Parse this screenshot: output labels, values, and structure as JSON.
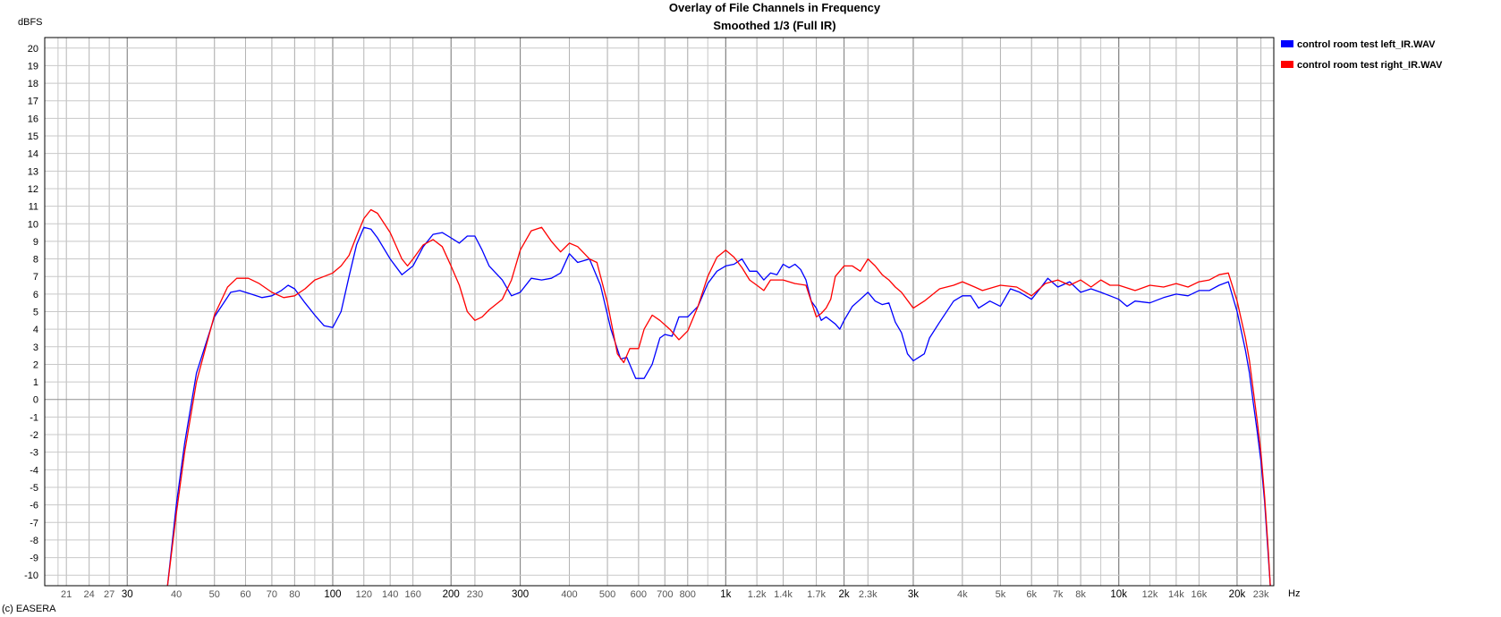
{
  "chart_data": {
    "type": "line",
    "title": "Overlay of File Channels in Frequency",
    "subtitle": "Smoothed 1/3 (Full IR)",
    "ylabel": "dBFS",
    "xlabel": "Hz",
    "x_scale": "log",
    "xlim": [
      18.5,
      24800
    ],
    "ylim": [
      -10.6,
      20.6
    ],
    "grid": true,
    "legend_placement": "top-right, outside plot",
    "y_ticks": [
      20,
      19,
      18,
      17,
      16,
      15,
      14,
      13,
      12,
      11,
      10,
      9,
      8,
      7,
      6,
      5,
      4,
      3,
      2,
      1,
      0,
      -1,
      -2,
      -3,
      -4,
      -5,
      -6,
      -7,
      -8,
      -9,
      -10
    ],
    "x_ticks": [
      {
        "value": 21,
        "label": "21",
        "major": false
      },
      {
        "value": 24,
        "label": "24",
        "major": false
      },
      {
        "value": 27,
        "label": "27",
        "major": false
      },
      {
        "value": 30,
        "label": "30",
        "major": true
      },
      {
        "value": 40,
        "label": "40",
        "major": false
      },
      {
        "value": 50,
        "label": "50",
        "major": false
      },
      {
        "value": 60,
        "label": "60",
        "major": false
      },
      {
        "value": 70,
        "label": "70",
        "major": false
      },
      {
        "value": 80,
        "label": "80",
        "major": false
      },
      {
        "value": 100,
        "label": "100",
        "major": true
      },
      {
        "value": 120,
        "label": "120",
        "major": false
      },
      {
        "value": 140,
        "label": "140",
        "major": false
      },
      {
        "value": 160,
        "label": "160",
        "major": false
      },
      {
        "value": 200,
        "label": "200",
        "major": true
      },
      {
        "value": 230,
        "label": "230",
        "major": false
      },
      {
        "value": 300,
        "label": "300",
        "major": true
      },
      {
        "value": 400,
        "label": "400",
        "major": false
      },
      {
        "value": 500,
        "label": "500",
        "major": false
      },
      {
        "value": 600,
        "label": "600",
        "major": false
      },
      {
        "value": 700,
        "label": "700",
        "major": false
      },
      {
        "value": 800,
        "label": "800",
        "major": false
      },
      {
        "value": 1000,
        "label": "1k",
        "major": true
      },
      {
        "value": 1200,
        "label": "1.2k",
        "major": false
      },
      {
        "value": 1400,
        "label": "1.4k",
        "major": false
      },
      {
        "value": 1700,
        "label": "1.7k",
        "major": false
      },
      {
        "value": 2000,
        "label": "2k",
        "major": true
      },
      {
        "value": 2300,
        "label": "2.3k",
        "major": false
      },
      {
        "value": 3000,
        "label": "3k",
        "major": true
      },
      {
        "value": 4000,
        "label": "4k",
        "major": false
      },
      {
        "value": 5000,
        "label": "5k",
        "major": false
      },
      {
        "value": 6000,
        "label": "6k",
        "major": false
      },
      {
        "value": 7000,
        "label": "7k",
        "major": false
      },
      {
        "value": 8000,
        "label": "8k",
        "major": false
      },
      {
        "value": 10000,
        "label": "10k",
        "major": true
      },
      {
        "value": 12000,
        "label": "12k",
        "major": false
      },
      {
        "value": 14000,
        "label": "14k",
        "major": false
      },
      {
        "value": 16000,
        "label": "16k",
        "major": false
      },
      {
        "value": 20000,
        "label": "20k",
        "major": true
      },
      {
        "value": 23000,
        "label": "23k",
        "major": false
      }
    ],
    "series": [
      {
        "name": "control room test left_IR.WAV",
        "color": "#0000ff",
        "points": [
          [
            38,
            -10.6
          ],
          [
            40,
            -6
          ],
          [
            42,
            -2.5
          ],
          [
            45,
            1.5
          ],
          [
            50,
            4.7
          ],
          [
            55,
            6.1
          ],
          [
            58,
            6.2
          ],
          [
            62,
            6
          ],
          [
            66,
            5.8
          ],
          [
            70,
            5.9
          ],
          [
            74,
            6.2
          ],
          [
            77,
            6.5
          ],
          [
            80,
            6.3
          ],
          [
            85,
            5.5
          ],
          [
            90,
            4.8
          ],
          [
            95,
            4.2
          ],
          [
            100,
            4.1
          ],
          [
            105,
            5
          ],
          [
            110,
            7
          ],
          [
            115,
            8.8
          ],
          [
            120,
            9.8
          ],
          [
            125,
            9.7
          ],
          [
            130,
            9.2
          ],
          [
            140,
            8
          ],
          [
            150,
            7.1
          ],
          [
            160,
            7.6
          ],
          [
            170,
            8.7
          ],
          [
            180,
            9.4
          ],
          [
            190,
            9.5
          ],
          [
            200,
            9.2
          ],
          [
            210,
            8.9
          ],
          [
            220,
            9.3
          ],
          [
            230,
            9.3
          ],
          [
            240,
            8.5
          ],
          [
            250,
            7.6
          ],
          [
            270,
            6.8
          ],
          [
            285,
            5.9
          ],
          [
            300,
            6.1
          ],
          [
            320,
            6.9
          ],
          [
            340,
            6.8
          ],
          [
            360,
            6.9
          ],
          [
            380,
            7.2
          ],
          [
            400,
            8.3
          ],
          [
            420,
            7.8
          ],
          [
            450,
            8
          ],
          [
            480,
            6.5
          ],
          [
            510,
            4
          ],
          [
            540,
            2.3
          ],
          [
            560,
            2.4
          ],
          [
            590,
            1.2
          ],
          [
            620,
            1.2
          ],
          [
            650,
            2
          ],
          [
            680,
            3.5
          ],
          [
            700,
            3.7
          ],
          [
            730,
            3.6
          ],
          [
            760,
            4.7
          ],
          [
            800,
            4.7
          ],
          [
            850,
            5.3
          ],
          [
            900,
            6.6
          ],
          [
            950,
            7.3
          ],
          [
            1000,
            7.6
          ],
          [
            1050,
            7.7
          ],
          [
            1100,
            8
          ],
          [
            1150,
            7.3
          ],
          [
            1200,
            7.3
          ],
          [
            1250,
            6.8
          ],
          [
            1300,
            7.2
          ],
          [
            1350,
            7.1
          ],
          [
            1400,
            7.7
          ],
          [
            1450,
            7.5
          ],
          [
            1500,
            7.7
          ],
          [
            1550,
            7.4
          ],
          [
            1600,
            6.8
          ],
          [
            1650,
            5.6
          ],
          [
            1700,
            5.2
          ],
          [
            1750,
            4.5
          ],
          [
            1800,
            4.7
          ],
          [
            1900,
            4.3
          ],
          [
            1950,
            4
          ],
          [
            2000,
            4.5
          ],
          [
            2100,
            5.3
          ],
          [
            2200,
            5.7
          ],
          [
            2300,
            6.1
          ],
          [
            2400,
            5.6
          ],
          [
            2500,
            5.4
          ],
          [
            2600,
            5.5
          ],
          [
            2700,
            4.4
          ],
          [
            2800,
            3.8
          ],
          [
            2900,
            2.6
          ],
          [
            3000,
            2.2
          ],
          [
            3100,
            2.4
          ],
          [
            3200,
            2.6
          ],
          [
            3300,
            3.5
          ],
          [
            3500,
            4.4
          ],
          [
            3800,
            5.6
          ],
          [
            4000,
            5.9
          ],
          [
            4200,
            5.9
          ],
          [
            4400,
            5.2
          ],
          [
            4700,
            5.6
          ],
          [
            5000,
            5.3
          ],
          [
            5300,
            6.3
          ],
          [
            5600,
            6.1
          ],
          [
            6000,
            5.7
          ],
          [
            6300,
            6.3
          ],
          [
            6600,
            6.9
          ],
          [
            7000,
            6.4
          ],
          [
            7500,
            6.7
          ],
          [
            8000,
            6.1
          ],
          [
            8500,
            6.3
          ],
          [
            9000,
            6.1
          ],
          [
            9500,
            5.9
          ],
          [
            10000,
            5.7
          ],
          [
            10500,
            5.3
          ],
          [
            11000,
            5.6
          ],
          [
            12000,
            5.5
          ],
          [
            13000,
            5.8
          ],
          [
            14000,
            6
          ],
          [
            15000,
            5.9
          ],
          [
            16000,
            6.2
          ],
          [
            17000,
            6.2
          ],
          [
            18000,
            6.5
          ],
          [
            19000,
            6.7
          ],
          [
            20000,
            5
          ],
          [
            21000,
            2.8
          ],
          [
            21500,
            1.5
          ],
          [
            22000,
            -0.2
          ],
          [
            22500,
            -1.8
          ],
          [
            23000,
            -3.5
          ],
          [
            23500,
            -5.8
          ],
          [
            24000,
            -8.8
          ],
          [
            24300,
            -10.6
          ]
        ]
      },
      {
        "name": "control room test right_IR.WAV",
        "color": "#ff0000",
        "points": [
          [
            38,
            -10.6
          ],
          [
            40,
            -6.5
          ],
          [
            42,
            -3
          ],
          [
            45,
            1
          ],
          [
            50,
            4.8
          ],
          [
            54,
            6.4
          ],
          [
            57,
            6.9
          ],
          [
            61,
            6.9
          ],
          [
            65,
            6.6
          ],
          [
            70,
            6.1
          ],
          [
            75,
            5.8
          ],
          [
            80,
            5.9
          ],
          [
            85,
            6.3
          ],
          [
            90,
            6.8
          ],
          [
            95,
            7
          ],
          [
            100,
            7.2
          ],
          [
            105,
            7.6
          ],
          [
            110,
            8.2
          ],
          [
            115,
            9.3
          ],
          [
            120,
            10.3
          ],
          [
            125,
            10.8
          ],
          [
            130,
            10.6
          ],
          [
            140,
            9.5
          ],
          [
            150,
            8
          ],
          [
            155,
            7.6
          ],
          [
            160,
            8
          ],
          [
            170,
            8.8
          ],
          [
            180,
            9.1
          ],
          [
            190,
            8.7
          ],
          [
            200,
            7.6
          ],
          [
            210,
            6.5
          ],
          [
            220,
            5
          ],
          [
            230,
            4.5
          ],
          [
            240,
            4.7
          ],
          [
            250,
            5.1
          ],
          [
            270,
            5.7
          ],
          [
            285,
            6.8
          ],
          [
            300,
            8.5
          ],
          [
            320,
            9.6
          ],
          [
            340,
            9.8
          ],
          [
            360,
            9
          ],
          [
            380,
            8.4
          ],
          [
            400,
            8.9
          ],
          [
            420,
            8.7
          ],
          [
            450,
            8
          ],
          [
            470,
            7.8
          ],
          [
            500,
            5.5
          ],
          [
            530,
            2.6
          ],
          [
            550,
            2.1
          ],
          [
            570,
            2.9
          ],
          [
            600,
            2.9
          ],
          [
            620,
            4
          ],
          [
            650,
            4.8
          ],
          [
            680,
            4.5
          ],
          [
            720,
            4
          ],
          [
            760,
            3.4
          ],
          [
            800,
            3.9
          ],
          [
            850,
            5.3
          ],
          [
            900,
            7
          ],
          [
            950,
            8.1
          ],
          [
            1000,
            8.5
          ],
          [
            1050,
            8.1
          ],
          [
            1100,
            7.5
          ],
          [
            1150,
            6.8
          ],
          [
            1200,
            6.5
          ],
          [
            1250,
            6.2
          ],
          [
            1300,
            6.8
          ],
          [
            1400,
            6.8
          ],
          [
            1500,
            6.6
          ],
          [
            1600,
            6.5
          ],
          [
            1700,
            4.7
          ],
          [
            1750,
            4.9
          ],
          [
            1800,
            5.2
          ],
          [
            1850,
            5.7
          ],
          [
            1900,
            7
          ],
          [
            2000,
            7.6
          ],
          [
            2100,
            7.6
          ],
          [
            2200,
            7.3
          ],
          [
            2300,
            8
          ],
          [
            2400,
            7.6
          ],
          [
            2500,
            7.1
          ],
          [
            2600,
            6.8
          ],
          [
            2700,
            6.4
          ],
          [
            2800,
            6.1
          ],
          [
            3000,
            5.2
          ],
          [
            3200,
            5.6
          ],
          [
            3500,
            6.3
          ],
          [
            3800,
            6.5
          ],
          [
            4000,
            6.7
          ],
          [
            4300,
            6.4
          ],
          [
            4500,
            6.2
          ],
          [
            5000,
            6.5
          ],
          [
            5500,
            6.4
          ],
          [
            6000,
            5.9
          ],
          [
            6500,
            6.6
          ],
          [
            7000,
            6.8
          ],
          [
            7500,
            6.5
          ],
          [
            8000,
            6.8
          ],
          [
            8500,
            6.4
          ],
          [
            9000,
            6.8
          ],
          [
            9500,
            6.5
          ],
          [
            10000,
            6.5
          ],
          [
            11000,
            6.2
          ],
          [
            12000,
            6.5
          ],
          [
            13000,
            6.4
          ],
          [
            14000,
            6.6
          ],
          [
            15000,
            6.4
          ],
          [
            16000,
            6.7
          ],
          [
            17000,
            6.8
          ],
          [
            18000,
            7.1
          ],
          [
            19000,
            7.2
          ],
          [
            20000,
            5.6
          ],
          [
            21000,
            3.5
          ],
          [
            21500,
            2.2
          ],
          [
            22000,
            0.5
          ],
          [
            22500,
            -1.2
          ],
          [
            23000,
            -3
          ],
          [
            23500,
            -5.5
          ],
          [
            24000,
            -8.5
          ],
          [
            24300,
            -10.6
          ]
        ]
      }
    ]
  },
  "x_unit_label": "Hz",
  "footer": {
    "copyright": "(c) EASERA"
  }
}
